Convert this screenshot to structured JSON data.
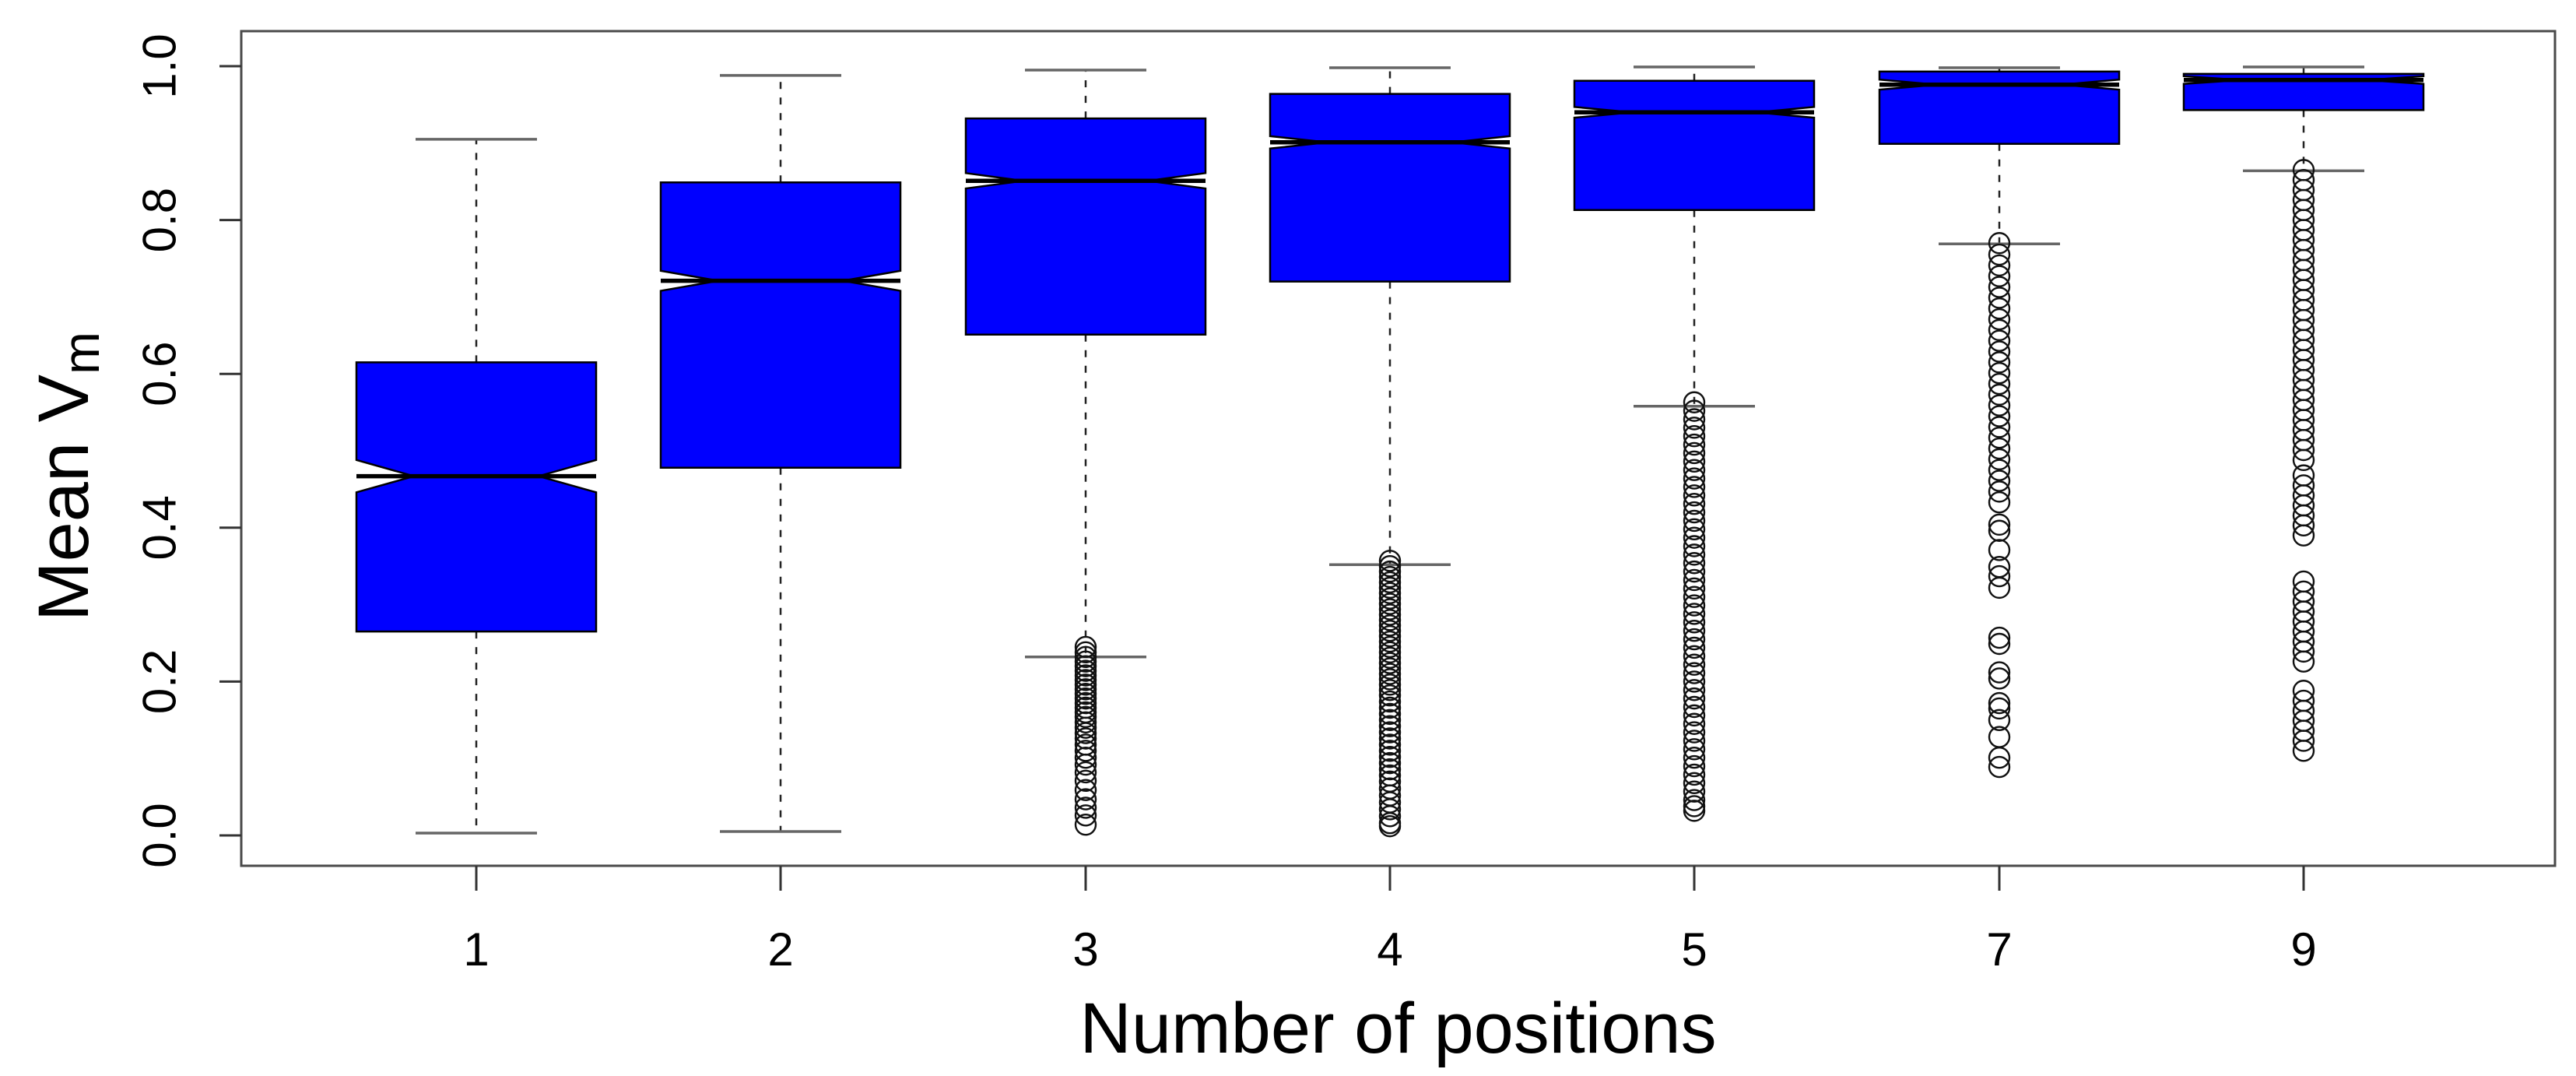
{
  "figure": {
    "ylabel_main": "Mean V",
    "ylabel_sub": "m",
    "xlabel": "Number of positions"
  },
  "chart_data": {
    "type": "boxplot",
    "title": "",
    "xlabel": "Number of positions",
    "ylabel": "Mean V_m",
    "categories": [
      "1",
      "2",
      "3",
      "4",
      "5",
      "7",
      "9"
    ],
    "ylim": [
      0,
      1
    ],
    "yticks": [
      0.0,
      0.2,
      0.4,
      0.6,
      0.8,
      1.0
    ],
    "ytick_labels": [
      "0.0",
      "0.2",
      "0.4",
      "0.6",
      "0.8",
      "1.0"
    ],
    "grid": false,
    "legend": "none",
    "box_fill": "#0000FF",
    "box_stroke": "#000000",
    "median_color": "#000000",
    "whisker_color": "#222222",
    "cap_color": "#666666",
    "outlier_color": "#111111",
    "notched": true,
    "boxes": [
      {
        "label": "1",
        "whisker_low": 0.003,
        "q1": 0.265,
        "median": 0.467,
        "q3": 0.615,
        "whisker_high": 0.905,
        "notch_half": 0.021,
        "outliers": []
      },
      {
        "label": "2",
        "whisker_low": 0.005,
        "q1": 0.478,
        "median": 0.721,
        "q3": 0.849,
        "whisker_high": 0.988,
        "notch_half": 0.013,
        "outliers": []
      },
      {
        "label": "3",
        "whisker_low": 0.232,
        "q1": 0.651,
        "median": 0.851,
        "q3": 0.932,
        "whisker_high": 0.995,
        "notch_half": 0.01,
        "outliers": [
          0.245,
          0.238,
          0.232,
          0.226,
          0.22,
          0.214,
          0.208,
          0.202,
          0.196,
          0.19,
          0.184,
          0.178,
          0.172,
          0.166,
          0.16,
          0.154,
          0.147,
          0.14,
          0.133,
          0.126,
          0.118,
          0.11,
          0.101,
          0.092,
          0.082,
          0.071,
          0.059,
          0.047,
          0.036,
          0.026,
          0.014
        ]
      },
      {
        "label": "4",
        "whisker_low": 0.352,
        "q1": 0.72,
        "median": 0.901,
        "q3": 0.964,
        "whisker_high": 0.998,
        "notch_half": 0.008,
        "outliers": [
          0.357,
          0.35,
          0.343,
          0.336,
          0.329,
          0.322,
          0.315,
          0.308,
          0.301,
          0.294,
          0.287,
          0.28,
          0.273,
          0.266,
          0.259,
          0.252,
          0.245,
          0.238,
          0.231,
          0.224,
          0.217,
          0.21,
          0.203,
          0.196,
          0.189,
          0.182,
          0.174,
          0.166,
          0.158,
          0.15,
          0.142,
          0.134,
          0.126,
          0.118,
          0.11,
          0.102,
          0.094,
          0.086,
          0.078,
          0.07,
          0.061,
          0.052,
          0.043,
          0.034,
          0.025,
          0.016,
          0.012
        ]
      },
      {
        "label": "5",
        "whisker_low": 0.558,
        "q1": 0.813,
        "median": 0.94,
        "q3": 0.981,
        "whisker_high": 0.999,
        "notch_half": 0.007,
        "outliers": [
          0.563,
          0.552,
          0.541,
          0.53,
          0.519,
          0.508,
          0.497,
          0.486,
          0.475,
          0.464,
          0.453,
          0.442,
          0.431,
          0.42,
          0.409,
          0.398,
          0.387,
          0.376,
          0.365,
          0.354,
          0.343,
          0.332,
          0.321,
          0.31,
          0.299,
          0.288,
          0.277,
          0.266,
          0.255,
          0.244,
          0.233,
          0.222,
          0.211,
          0.2,
          0.189,
          0.178,
          0.167,
          0.156,
          0.145,
          0.134,
          0.123,
          0.112,
          0.101,
          0.09,
          0.079,
          0.068,
          0.057,
          0.046,
          0.038,
          0.032
        ]
      },
      {
        "label": "7",
        "whisker_low": 0.769,
        "q1": 0.899,
        "median": 0.976,
        "q3": 0.993,
        "whisker_high": 0.998,
        "notch_half": 0.0065,
        "outliers": [
          0.77,
          0.755,
          0.741,
          0.727,
          0.713,
          0.699,
          0.685,
          0.671,
          0.657,
          0.643,
          0.629,
          0.615,
          0.601,
          0.587,
          0.573,
          0.559,
          0.545,
          0.531,
          0.517,
          0.503,
          0.489,
          0.475,
          0.461,
          0.447,
          0.433,
          0.404,
          0.396,
          0.371,
          0.349,
          0.337,
          0.322,
          0.257,
          0.249,
          0.212,
          0.204,
          0.172,
          0.165,
          0.15,
          0.128,
          0.101,
          0.089
        ]
      },
      {
        "label": "9",
        "whisker_low": 0.864,
        "q1": 0.943,
        "median": 0.982,
        "q3": 0.99,
        "whisker_high": 0.999,
        "notch_half": 0.005,
        "outliers": [
          0.865,
          0.852,
          0.839,
          0.826,
          0.813,
          0.8,
          0.787,
          0.774,
          0.761,
          0.748,
          0.735,
          0.722,
          0.709,
          0.696,
          0.683,
          0.67,
          0.657,
          0.644,
          0.631,
          0.618,
          0.605,
          0.592,
          0.579,
          0.566,
          0.553,
          0.54,
          0.527,
          0.514,
          0.501,
          0.488,
          0.468,
          0.455,
          0.442,
          0.429,
          0.416,
          0.403,
          0.39,
          0.33,
          0.317,
          0.304,
          0.291,
          0.278,
          0.265,
          0.252,
          0.239,
          0.226,
          0.188,
          0.175,
          0.162,
          0.149,
          0.136,
          0.123,
          0.11
        ]
      }
    ]
  }
}
